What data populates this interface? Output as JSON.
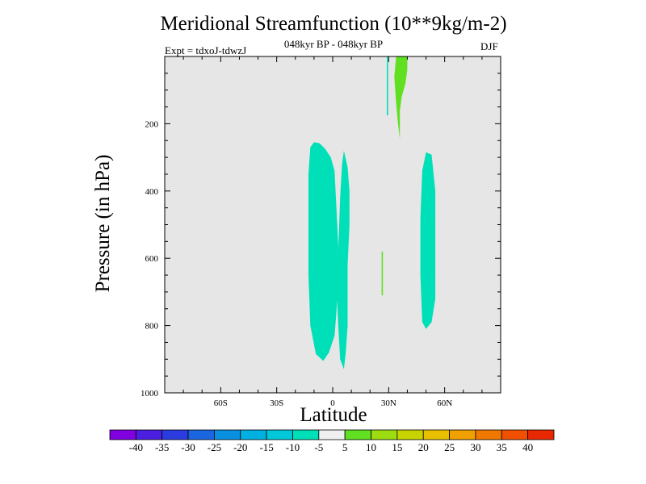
{
  "chart_data": {
    "type": "contour",
    "title": "Meridional Streamfunction (10**9kg/m-2)",
    "subtitle": "048kyr BP - 048kyr BP",
    "experiment": "Expt = tdxoJ-tdwzJ",
    "season": "DJF",
    "xlabel": "Latitude",
    "ylabel": "Pressure (in hPa)",
    "xlim": [
      -90,
      90
    ],
    "ylim": [
      1000,
      0
    ],
    "x_ticks": [
      -60,
      -30,
      0,
      30,
      60
    ],
    "x_tick_labels": [
      "60S",
      "30S",
      "0",
      "30N",
      "60N"
    ],
    "y_ticks": [
      200,
      400,
      600,
      800,
      1000
    ],
    "y_tick_labels": [
      "200",
      "400",
      "600",
      "800",
      "1000"
    ],
    "background_color": "#e6e6e6",
    "colorbar": {
      "labels": [
        "-40",
        "-35",
        "-30",
        "-25",
        "-20",
        "-15",
        "-10",
        "-5",
        "5",
        "10",
        "15",
        "20",
        "25",
        "30",
        "35",
        "40"
      ],
      "colors": [
        "#8000e0",
        "#4b1ee0",
        "#2a3ce0",
        "#1a66e0",
        "#0a90e0",
        "#00b0e0",
        "#00c8d8",
        "#00e0b8",
        "#f0f0f0",
        "#60e020",
        "#9cdc10",
        "#c8d400",
        "#e8c000",
        "#f0a000",
        "#f07800",
        "#f05000",
        "#e82800"
      ]
    },
    "regions": [
      {
        "name": "tropical negative cell south",
        "level": "-10 to -5",
        "color": "#00e0b8",
        "points": [
          [
            -10,
            255
          ],
          [
            -7,
            258
          ],
          [
            -4,
            275
          ],
          [
            -1,
            300
          ],
          [
            1,
            340
          ],
          [
            2,
            450
          ],
          [
            3,
            560
          ],
          [
            3,
            660
          ],
          [
            2,
            760
          ],
          [
            1,
            830
          ],
          [
            -2,
            880
          ],
          [
            -5,
            905
          ],
          [
            -9,
            885
          ],
          [
            -12,
            800
          ],
          [
            -13,
            650
          ],
          [
            -13,
            500
          ],
          [
            -13,
            350
          ],
          [
            -12,
            270
          ]
        ]
      },
      {
        "name": "tropical negative cell north",
        "level": "-10 to -5",
        "color": "#00e0b8",
        "points": [
          [
            6,
            280
          ],
          [
            8,
            330
          ],
          [
            9,
            400
          ],
          [
            9,
            500
          ],
          [
            8,
            620
          ],
          [
            8,
            700
          ],
          [
            8,
            800
          ],
          [
            7,
            880
          ],
          [
            6,
            930
          ],
          [
            4,
            900
          ],
          [
            3,
            800
          ],
          [
            2,
            680
          ],
          [
            3,
            580
          ],
          [
            4,
            420
          ],
          [
            5,
            320
          ]
        ]
      },
      {
        "name": "midlatitude negative cell north",
        "level": "-10 to -5",
        "color": "#00e0b8",
        "points": [
          [
            50,
            285
          ],
          [
            53,
            292
          ],
          [
            55,
            400
          ],
          [
            55,
            550
          ],
          [
            55,
            720
          ],
          [
            53,
            790
          ],
          [
            50,
            810
          ],
          [
            48,
            790
          ],
          [
            47,
            650
          ],
          [
            47,
            480
          ],
          [
            48,
            340
          ]
        ]
      },
      {
        "name": "upper positive cell",
        "level": "5 to 10",
        "color": "#60e020",
        "points": [
          [
            34,
            0
          ],
          [
            40,
            0
          ],
          [
            40,
            40
          ],
          [
            39,
            80
          ],
          [
            37,
            120
          ],
          [
            36,
            160
          ],
          [
            36,
            200
          ],
          [
            36,
            245
          ],
          [
            35,
            200
          ],
          [
            34,
            140
          ],
          [
            33,
            60
          ]
        ]
      },
      {
        "name": "upper negative sliver",
        "level": "-10 to -5",
        "color": "#00e0b8",
        "points": [
          [
            29,
            0
          ],
          [
            29.7,
            0
          ],
          [
            29.7,
            175
          ],
          [
            29,
            175
          ]
        ]
      },
      {
        "name": "midlevel positive sliver",
        "level": "5 to 10",
        "color": "#60e020",
        "points": [
          [
            26.2,
            580
          ],
          [
            26.9,
            580
          ],
          [
            26.9,
            710
          ],
          [
            26.2,
            710
          ]
        ]
      }
    ]
  }
}
